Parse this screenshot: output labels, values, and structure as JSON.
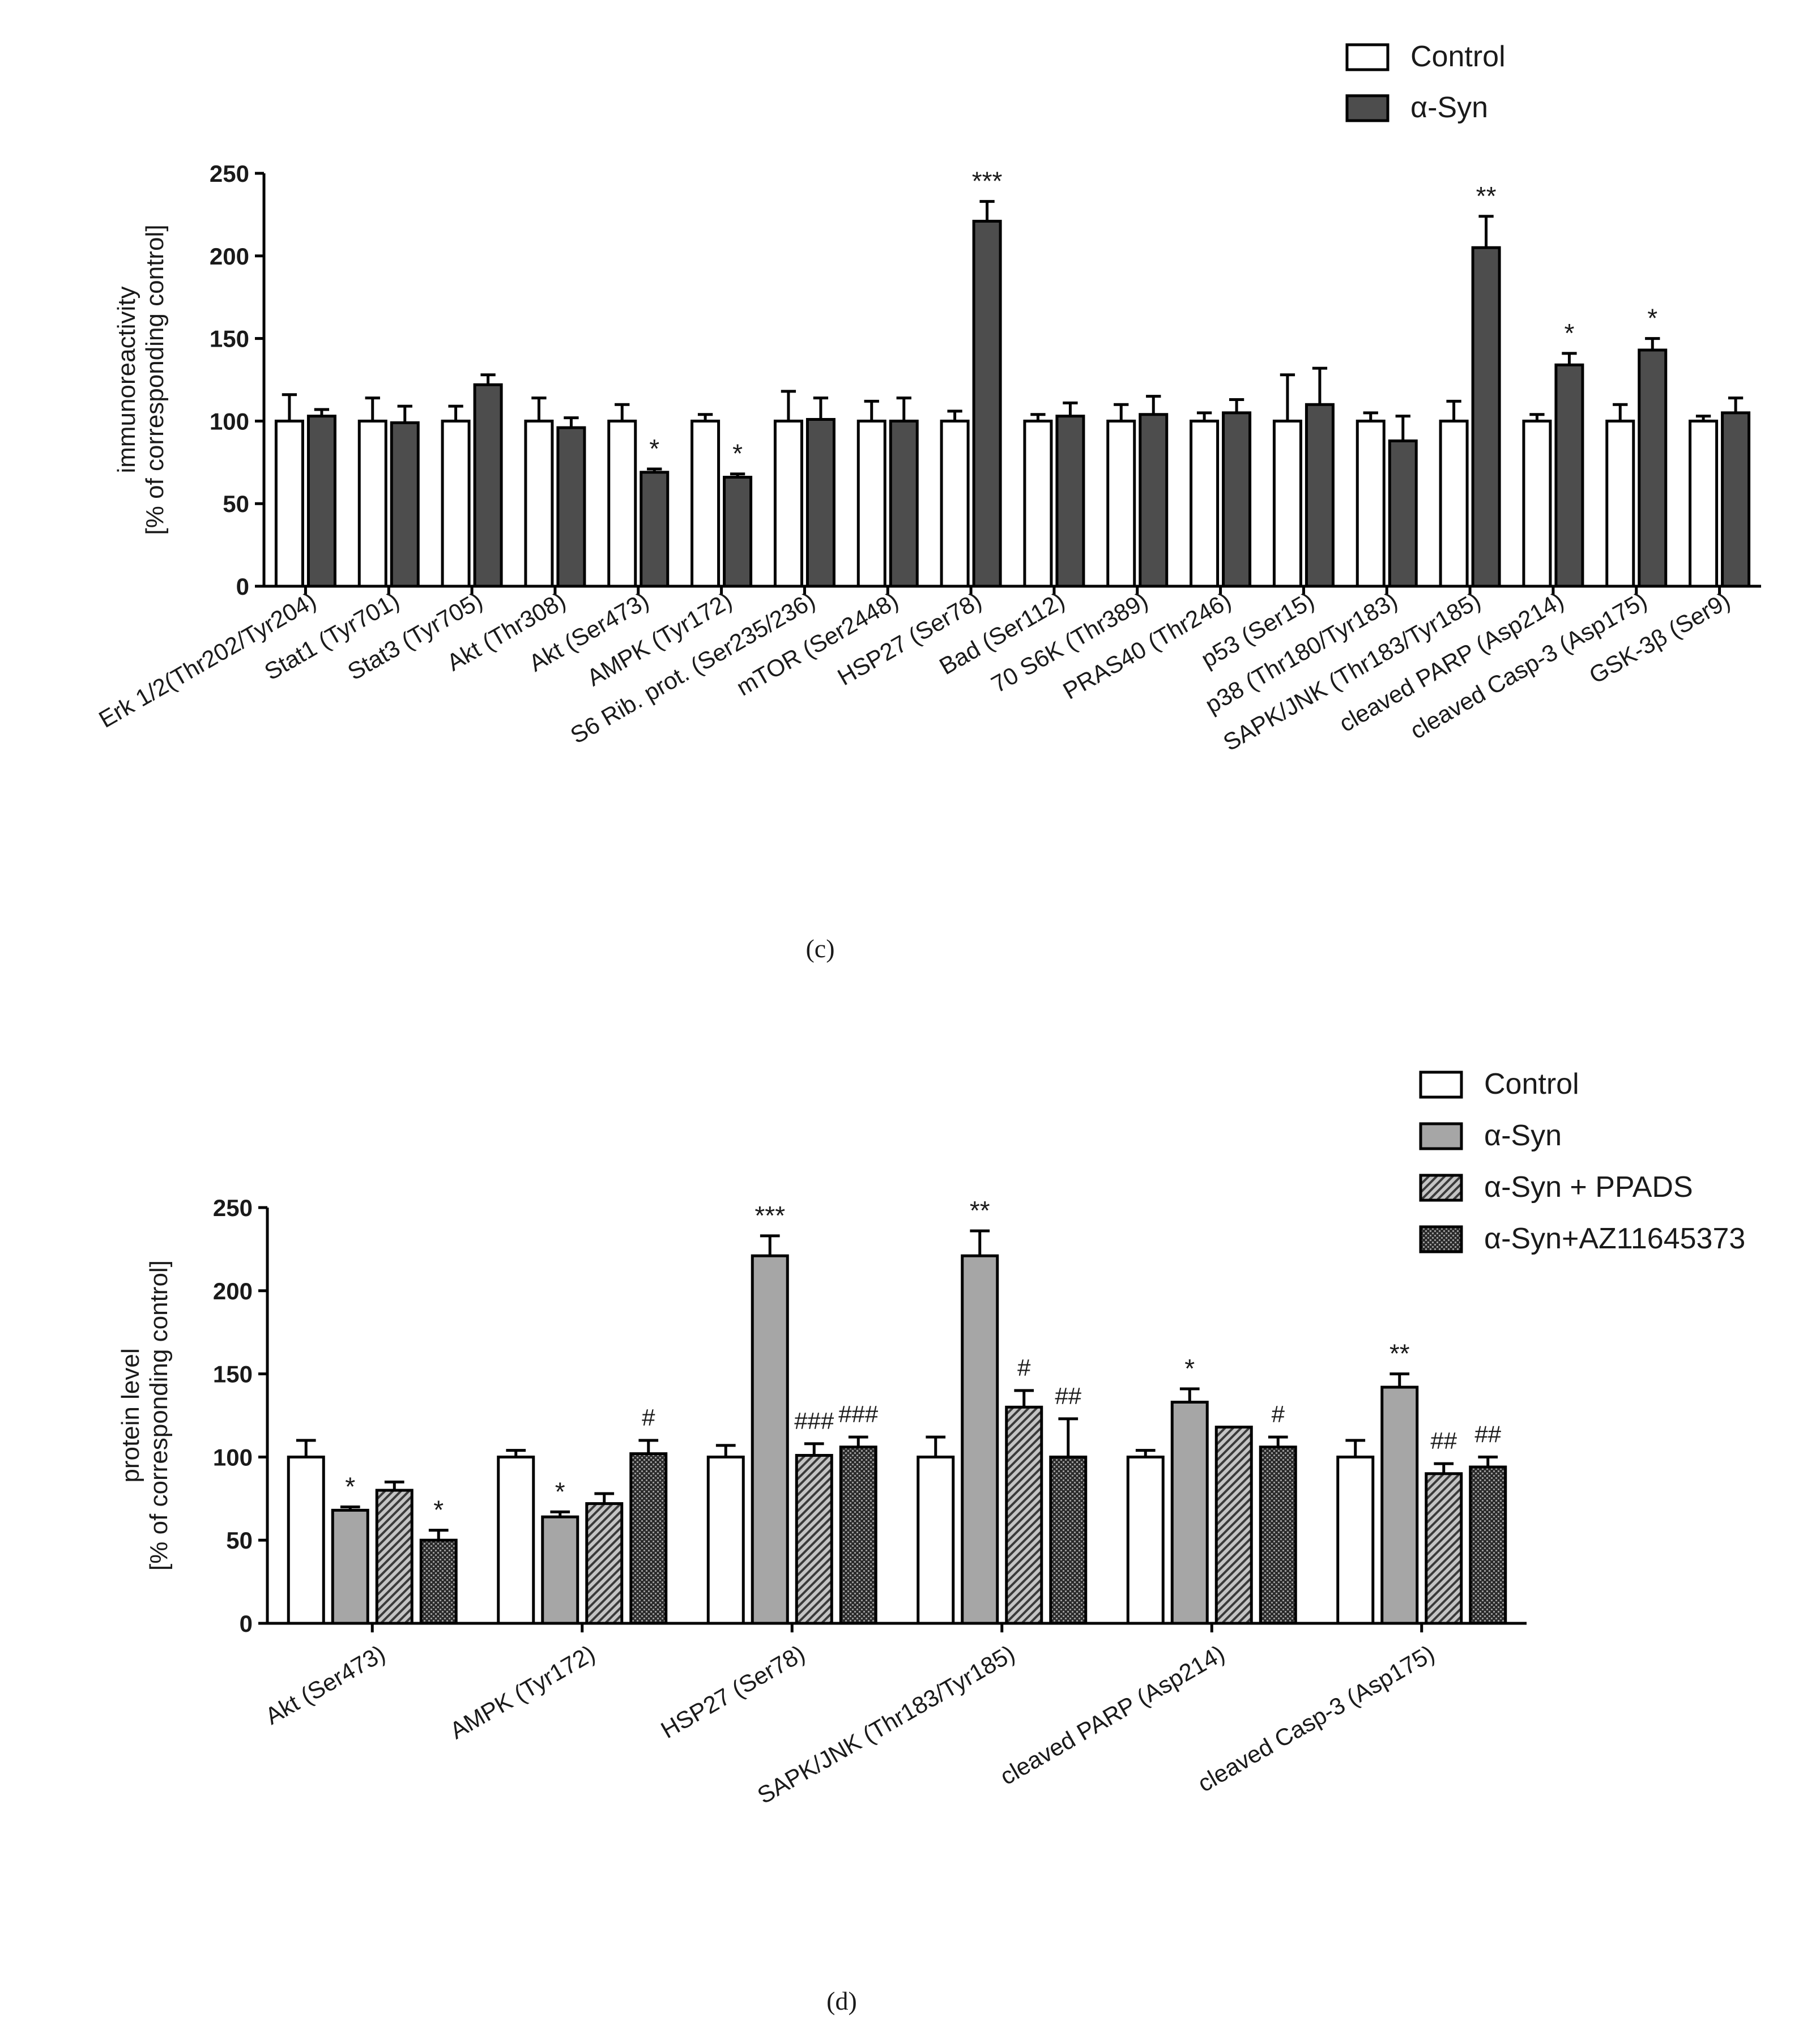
{
  "colors": {
    "control": "#ffffff",
    "asyn_c": "#4d4d4d",
    "asyn_d": "#a6a6a6",
    "ppads": "#8c8c8c",
    "az": "#3c3c3c",
    "stroke": "#000000"
  },
  "chart_data": [
    {
      "panel": "(c)",
      "type": "bar",
      "ylabel_lines": [
        "immunoreactivity",
        "[% of corresponding control]"
      ],
      "ylim": [
        0,
        250
      ],
      "yticks": [
        "0",
        "50",
        "100",
        "150",
        "200",
        "250"
      ],
      "legend": [
        "Control",
        "α-Syn"
      ],
      "legend_position": "top-right",
      "categories": [
        "Erk 1/2(Thr202/Tyr204)",
        "Stat1 (Tyr701)",
        "Stat3 (Tyr705)",
        "Akt (Thr308)",
        "Akt (Ser473)",
        "AMPK (Tyr172)",
        "S6 Rib. prot. (Ser235/236)",
        "mTOR (Ser2448)",
        "HSP27 (Ser78)",
        "Bad (Ser112)",
        "70 S6K (Thr389)",
        "PRAS40 (Thr246)",
        "p53 (Ser15)",
        "p38 (Thr180/Tyr183)",
        "SAPK/JNK (Thr183/Tyr185)",
        "cleaved PARP (Asp214)",
        "cleaved Casp-3 (Asp175)",
        "GSK-3β (Ser9)"
      ],
      "series": [
        {
          "name": "Control",
          "values": [
            100,
            100,
            100,
            100,
            100,
            100,
            100,
            100,
            100,
            100,
            100,
            100,
            100,
            100,
            100,
            100,
            100,
            100
          ],
          "errors": [
            16,
            14,
            9,
            14,
            10,
            4,
            18,
            12,
            6,
            4,
            10,
            5,
            28,
            5,
            12,
            4,
            10,
            3
          ],
          "annotations": [
            "",
            "",
            "",
            "",
            "",
            "",
            "",
            "",
            "",
            "",
            "",
            "",
            "",
            "",
            "",
            "",
            "",
            ""
          ]
        },
        {
          "name": "α-Syn",
          "values": [
            103,
            99,
            122,
            96,
            69,
            66,
            101,
            100,
            221,
            103,
            104,
            105,
            110,
            88,
            205,
            134,
            143,
            105
          ],
          "errors": [
            4,
            10,
            6,
            6,
            2,
            2,
            13,
            14,
            12,
            8,
            11,
            8,
            22,
            15,
            19,
            7,
            7,
            9
          ],
          "annotations": [
            "",
            "",
            "",
            "",
            "*",
            "*",
            "",
            "",
            "***",
            "",
            "",
            "",
            "",
            "",
            "**",
            "*",
            "*",
            ""
          ]
        }
      ]
    },
    {
      "panel": "(d)",
      "type": "bar",
      "ylabel_lines": [
        "protein level",
        "[% of corresponding control]"
      ],
      "ylim": [
        0,
        250
      ],
      "yticks": [
        "0",
        "50",
        "100",
        "150",
        "200",
        "250"
      ],
      "legend": [
        "Control",
        "α-Syn",
        "α-Syn + PPADS",
        "α-Syn+AZ11645373"
      ],
      "legend_position": "top-right",
      "categories": [
        "Akt (Ser473)",
        "AMPK (Tyr172)",
        "HSP27 (Ser78)",
        "SAPK/JNK (Thr183/Tyr185)",
        "cleaved PARP (Asp214)",
        "cleaved Casp-3 (Asp175)"
      ],
      "series": [
        {
          "name": "Control",
          "values": [
            100,
            100,
            100,
            100,
            100,
            100
          ],
          "errors": [
            10,
            4,
            7,
            12,
            4,
            10
          ],
          "annotations": [
            "",
            "",
            "",
            "",
            "",
            ""
          ]
        },
        {
          "name": "α-Syn",
          "values": [
            68,
            64,
            221,
            221,
            133,
            142
          ],
          "errors": [
            2,
            3,
            12,
            15,
            8,
            8
          ],
          "annotations": [
            "*",
            "*",
            "***",
            "**",
            "*",
            "**"
          ]
        },
        {
          "name": "α-Syn + PPADS",
          "values": [
            80,
            72,
            101,
            130,
            118,
            90
          ],
          "errors": [
            5,
            6,
            7,
            10,
            0,
            6
          ],
          "annotations": [
            "",
            "",
            "###",
            "#",
            "",
            "##"
          ]
        },
        {
          "name": "α-Syn+AZ11645373",
          "values": [
            50,
            102,
            106,
            100,
            106,
            94
          ],
          "errors": [
            6,
            8,
            6,
            23,
            6,
            6
          ],
          "annotations": [
            "*",
            "#",
            "###",
            "##",
            "#",
            "##"
          ]
        }
      ]
    }
  ]
}
